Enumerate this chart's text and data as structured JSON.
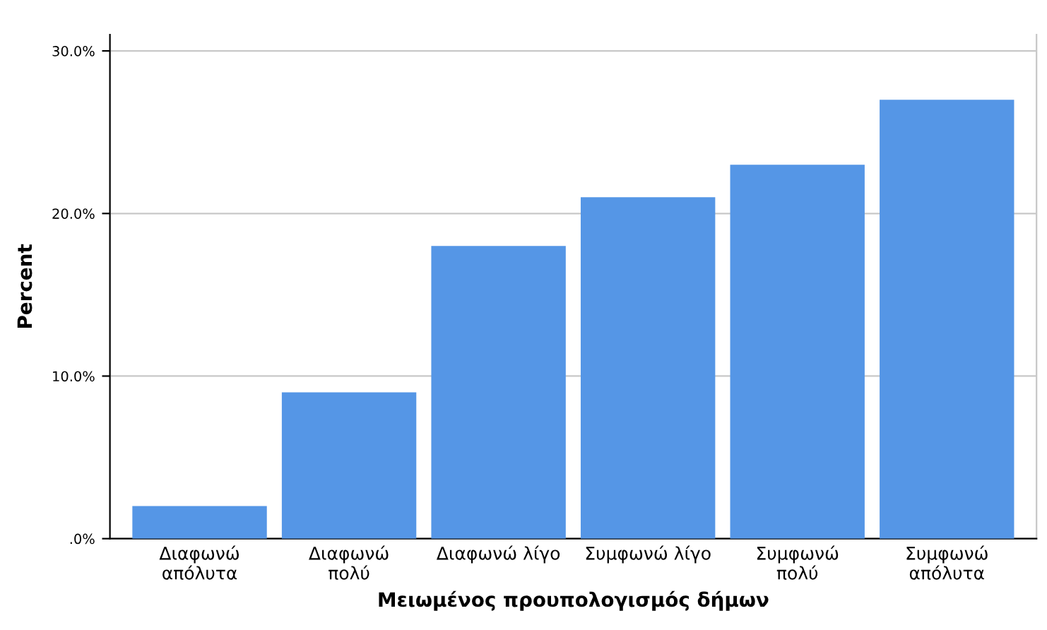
{
  "chart_data": {
    "type": "bar",
    "xlabel": "Μειωμένος προυπολογισμός δήμων",
    "ylabel": "Percent",
    "categories": [
      "Διαφωνώ\nαπόλυτα",
      "Διαφωνώ\nπολύ",
      "Διαφωνώ λίγο",
      "Συμφωνώ λίγο",
      "Συμφωνώ\nπολύ",
      "Συμφωνώ\nαπόλυτα"
    ],
    "values": [
      2.0,
      9.0,
      18.0,
      21.0,
      23.0,
      27.0
    ],
    "color": "#5596e6",
    "ylim": [
      0,
      31
    ],
    "yticks": [
      {
        "value": 0,
        "label": ".0%"
      },
      {
        "value": 10,
        "label": "10.0%"
      },
      {
        "value": 20,
        "label": "20.0%"
      },
      {
        "value": 30,
        "label": "30.0%"
      }
    ],
    "grid": "y",
    "legend": false
  }
}
